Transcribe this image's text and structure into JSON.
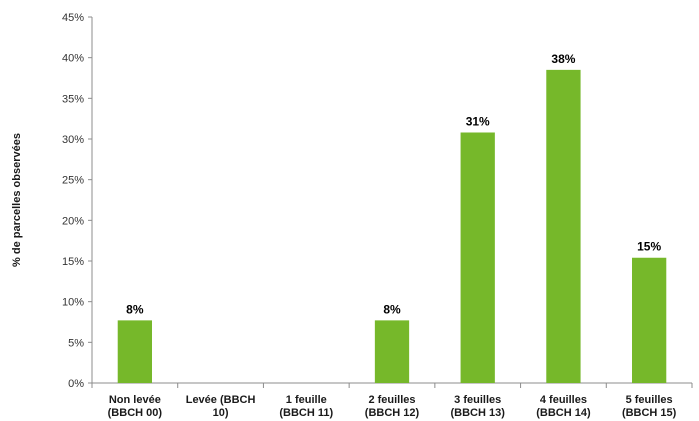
{
  "chart_data": {
    "type": "bar",
    "ylabel": "% de parcelles observées",
    "ylim": [
      0,
      45
    ],
    "yticks": [
      0,
      5,
      10,
      15,
      20,
      25,
      30,
      35,
      40,
      45
    ],
    "ytick_labels": [
      "0%",
      "5%",
      "10%",
      "15%",
      "20%",
      "25%",
      "30%",
      "35%",
      "40%",
      "45%"
    ],
    "categories": [
      [
        "Non levée",
        "(BBCH 00)"
      ],
      [
        "Levée (BBCH",
        "10)"
      ],
      [
        "1 feuille",
        "(BBCH 11)"
      ],
      [
        "2 feuilles",
        "(BBCH 12)"
      ],
      [
        "3 feuilles",
        "(BBCH 13)"
      ],
      [
        "4 feuilles",
        "(BBCH 14)"
      ],
      [
        "5 feuilles",
        "(BBCH 15)"
      ]
    ],
    "values": [
      7.7,
      0,
      0,
      7.7,
      30.8,
      38.5,
      15.4
    ],
    "data_labels": [
      "8%",
      "",
      "",
      "8%",
      "31%",
      "38%",
      "15%"
    ],
    "bar_color": "#76b82a",
    "grid": false
  }
}
